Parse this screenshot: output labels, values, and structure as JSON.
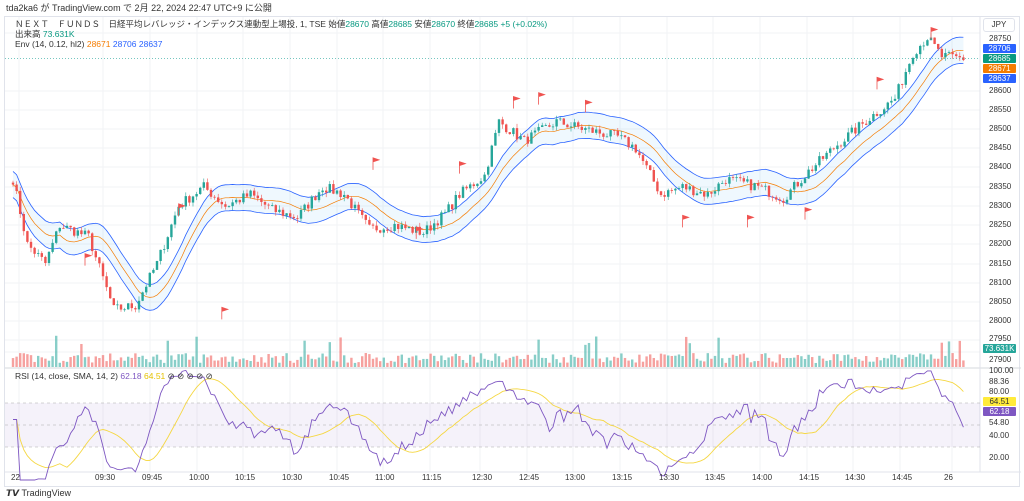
{
  "published": "tda2ka6 が TradingView.com で 2月 22, 2024 22:47 UTC+9 に公開",
  "symbol": {
    "name": "ＮＥＸＴ　ＦＵＮＤＳ　日経平均レバレッジ・インデックス連動型上場投, 1, TSE",
    "open_label": "始値",
    "open": "28670",
    "high_label": "高値",
    "high": "28685",
    "low_label": "安値",
    "low": "28670",
    "close_label": "終値",
    "close": "28685",
    "change": "+5 (+0.02%)"
  },
  "volume": {
    "label": "出来高",
    "value": "73.631K"
  },
  "env": {
    "label": "Env (14, 0.12, hl2)",
    "basis": "28671",
    "upper": "28706",
    "lower": "28637"
  },
  "rsi": {
    "label": "RSI (14, close, SMA, 14, 2)",
    "value": "62.18",
    "ma": "64.51",
    "icons": "⊘ ⊘    ⊘ ⊘ ⊘"
  },
  "currency": "JPY",
  "price_ticks": [
    "28750",
    "28600",
    "28550",
    "28500",
    "28450",
    "28400",
    "28350",
    "28300",
    "28250",
    "28200",
    "28150",
    "28100",
    "28050",
    "28000",
    "27950",
    "27900"
  ],
  "rsi_ticks": [
    "100.00",
    "88.36",
    "80.00",
    "54.80",
    "40.00",
    "20.00"
  ],
  "time_ticks": [
    "22",
    "09:30",
    "09:45",
    "10:00",
    "10:15",
    "10:30",
    "10:45",
    "11:00",
    "11:15",
    "12:30",
    "12:45",
    "13:00",
    "13:15",
    "13:30",
    "13:45",
    "14:00",
    "14:15",
    "14:30",
    "14:45",
    "26"
  ],
  "badges": {
    "upper": "28706",
    "close": "28685",
    "basis": "28671",
    "lower": "28637",
    "volume": "73.631K",
    "rsi_ma": "64.51",
    "rsi": "62.18"
  },
  "footer": "TradingView",
  "colors": {
    "up": "#26a69a",
    "down": "#ef5350",
    "basis": "#f57c00",
    "band": "#2962ff",
    "rsi": "#7e57c2",
    "rsi_ma": "#f5d742"
  },
  "chart_data": {
    "type": "candlestick",
    "ylim": [
      27890,
      28760
    ],
    "series_keypoints": [
      [
        0,
        28370
      ],
      [
        4,
        28200
      ],
      [
        9,
        28150
      ],
      [
        13,
        28250
      ],
      [
        21,
        28220
      ],
      [
        28,
        28030
      ],
      [
        34,
        28040
      ],
      [
        40,
        28150
      ],
      [
        46,
        28300
      ],
      [
        53,
        28350
      ],
      [
        59,
        28300
      ],
      [
        66,
        28330
      ],
      [
        72,
        28290
      ],
      [
        79,
        28270
      ],
      [
        86,
        28350
      ],
      [
        92,
        28330
      ],
      [
        99,
        28240
      ],
      [
        106,
        28250
      ],
      [
        114,
        28230
      ],
      [
        120,
        28280
      ],
      [
        124,
        28330
      ],
      [
        131,
        28380
      ],
      [
        135,
        28520
      ],
      [
        142,
        28470
      ],
      [
        151,
        28520
      ],
      [
        159,
        28500
      ],
      [
        168,
        28480
      ],
      [
        173,
        28450
      ],
      [
        180,
        28330
      ],
      [
        186,
        28350
      ],
      [
        193,
        28330
      ],
      [
        198,
        28370
      ],
      [
        207,
        28350
      ],
      [
        214,
        28320
      ],
      [
        221,
        28390
      ],
      [
        229,
        28460
      ],
      [
        238,
        28530
      ],
      [
        245,
        28580
      ],
      [
        250,
        28700
      ],
      [
        254,
        28740
      ],
      [
        258,
        28690
      ],
      [
        264,
        28685
      ]
    ]
  }
}
